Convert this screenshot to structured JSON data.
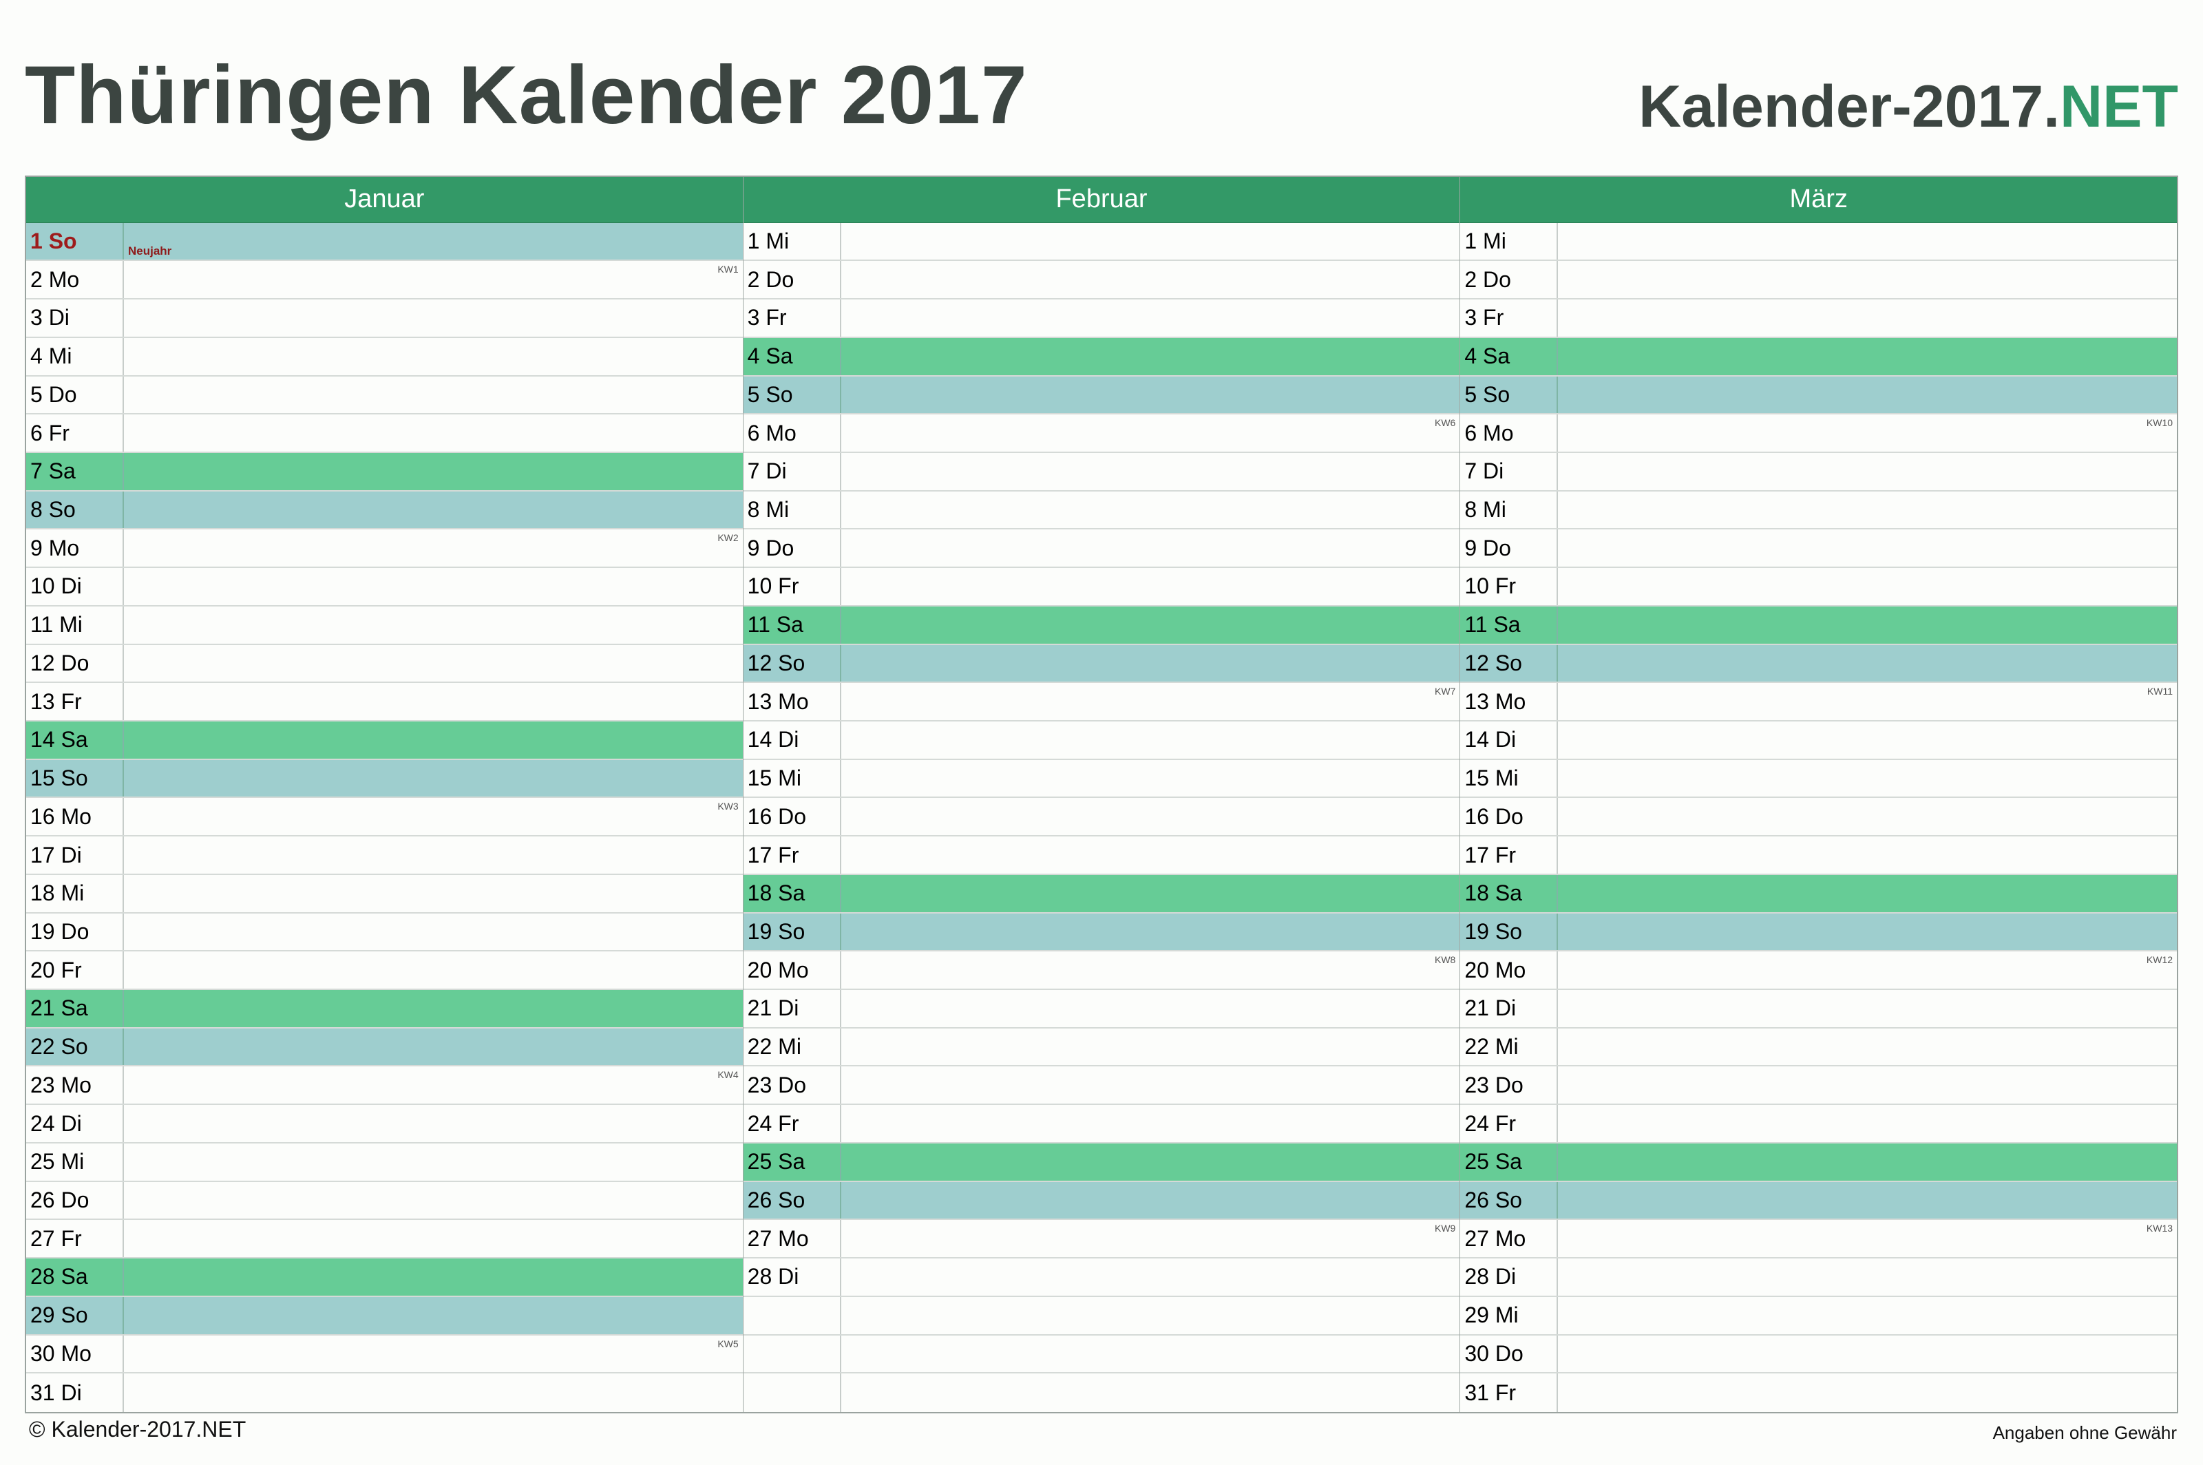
{
  "header": {
    "title": "Thüringen Kalender 2017",
    "brand_main": "Kalender-2017.",
    "brand_tld": "NET"
  },
  "colors": {
    "header_green": "#339967",
    "saturday": "#66cc96",
    "sunday": "#9ecece",
    "holiday_text": "#9e1b1b"
  },
  "months": [
    {
      "name": "Januar",
      "days": [
        {
          "label": "1 So",
          "type": "sun",
          "holiday": "Neujahr"
        },
        {
          "label": "2 Mo",
          "kw": "KW1"
        },
        {
          "label": "3 Di"
        },
        {
          "label": "4 Mi"
        },
        {
          "label": "5 Do"
        },
        {
          "label": "6 Fr"
        },
        {
          "label": "7 Sa",
          "type": "sat"
        },
        {
          "label": "8 So",
          "type": "sun"
        },
        {
          "label": "9 Mo",
          "kw": "KW2"
        },
        {
          "label": "10 Di"
        },
        {
          "label": "11 Mi"
        },
        {
          "label": "12 Do"
        },
        {
          "label": "13 Fr"
        },
        {
          "label": "14 Sa",
          "type": "sat"
        },
        {
          "label": "15 So",
          "type": "sun"
        },
        {
          "label": "16 Mo",
          "kw": "KW3"
        },
        {
          "label": "17 Di"
        },
        {
          "label": "18 Mi"
        },
        {
          "label": "19 Do"
        },
        {
          "label": "20 Fr"
        },
        {
          "label": "21 Sa",
          "type": "sat"
        },
        {
          "label": "22 So",
          "type": "sun"
        },
        {
          "label": "23 Mo",
          "kw": "KW4"
        },
        {
          "label": "24 Di"
        },
        {
          "label": "25 Mi"
        },
        {
          "label": "26 Do"
        },
        {
          "label": "27 Fr"
        },
        {
          "label": "28 Sa",
          "type": "sat"
        },
        {
          "label": "29 So",
          "type": "sun"
        },
        {
          "label": "30 Mo",
          "kw": "KW5"
        },
        {
          "label": "31 Di"
        }
      ]
    },
    {
      "name": "Februar",
      "days": [
        {
          "label": "1 Mi"
        },
        {
          "label": "2 Do"
        },
        {
          "label": "3 Fr"
        },
        {
          "label": "4 Sa",
          "type": "sat"
        },
        {
          "label": "5 So",
          "type": "sun"
        },
        {
          "label": "6 Mo",
          "kw": "KW6"
        },
        {
          "label": "7 Di"
        },
        {
          "label": "8 Mi"
        },
        {
          "label": "9 Do"
        },
        {
          "label": "10 Fr"
        },
        {
          "label": "11 Sa",
          "type": "sat"
        },
        {
          "label": "12 So",
          "type": "sun"
        },
        {
          "label": "13 Mo",
          "kw": "KW7"
        },
        {
          "label": "14 Di"
        },
        {
          "label": "15 Mi"
        },
        {
          "label": "16 Do"
        },
        {
          "label": "17 Fr"
        },
        {
          "label": "18 Sa",
          "type": "sat"
        },
        {
          "label": "19 So",
          "type": "sun"
        },
        {
          "label": "20 Mo",
          "kw": "KW8"
        },
        {
          "label": "21 Di"
        },
        {
          "label": "22 Mi"
        },
        {
          "label": "23 Do"
        },
        {
          "label": "24 Fr"
        },
        {
          "label": "25 Sa",
          "type": "sat"
        },
        {
          "label": "26 So",
          "type": "sun"
        },
        {
          "label": "27 Mo",
          "kw": "KW9"
        },
        {
          "label": "28 Di"
        },
        {
          "label": ""
        },
        {
          "label": ""
        },
        {
          "label": ""
        }
      ]
    },
    {
      "name": "März",
      "days": [
        {
          "label": "1 Mi"
        },
        {
          "label": "2 Do"
        },
        {
          "label": "3 Fr"
        },
        {
          "label": "4 Sa",
          "type": "sat"
        },
        {
          "label": "5 So",
          "type": "sun"
        },
        {
          "label": "6 Mo",
          "kw": "KW10"
        },
        {
          "label": "7 Di"
        },
        {
          "label": "8 Mi"
        },
        {
          "label": "9 Do"
        },
        {
          "label": "10 Fr"
        },
        {
          "label": "11 Sa",
          "type": "sat"
        },
        {
          "label": "12 So",
          "type": "sun"
        },
        {
          "label": "13 Mo",
          "kw": "KW11"
        },
        {
          "label": "14 Di"
        },
        {
          "label": "15 Mi"
        },
        {
          "label": "16 Do"
        },
        {
          "label": "17 Fr"
        },
        {
          "label": "18 Sa",
          "type": "sat"
        },
        {
          "label": "19 So",
          "type": "sun"
        },
        {
          "label": "20 Mo",
          "kw": "KW12"
        },
        {
          "label": "21 Di"
        },
        {
          "label": "22 Mi"
        },
        {
          "label": "23 Do"
        },
        {
          "label": "24 Fr"
        },
        {
          "label": "25 Sa",
          "type": "sat"
        },
        {
          "label": "26 So",
          "type": "sun"
        },
        {
          "label": "27 Mo",
          "kw": "KW13"
        },
        {
          "label": "28 Di"
        },
        {
          "label": "29 Mi"
        },
        {
          "label": "30 Do"
        },
        {
          "label": "31 Fr"
        }
      ]
    }
  ],
  "footer": {
    "copyright": "© Kalender-2017.NET",
    "disclaimer": "Angaben ohne Gewähr"
  }
}
